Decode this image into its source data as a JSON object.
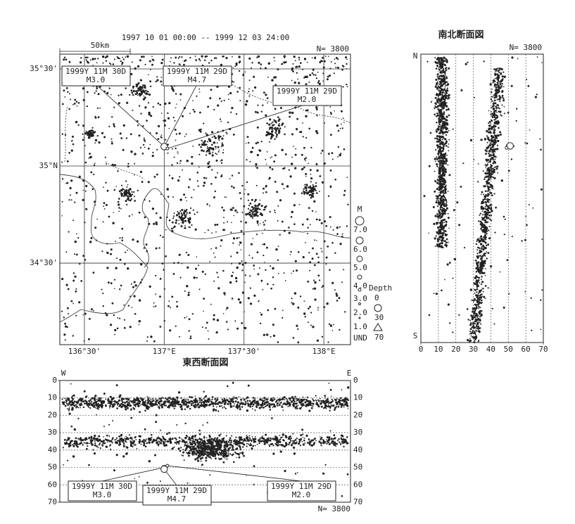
{
  "header": {
    "period": "1997 10 01 00:00 -- 1999 12 03 24:00",
    "scale_label": "50km"
  },
  "chart_data": [
    {
      "type": "map",
      "count_label": "N= 3800",
      "xlim": [
        136.346,
        138.167
      ],
      "ylim": [
        34.08,
        35.576
      ],
      "xticks": [
        {
          "value": 136.5,
          "label": "136°30'"
        },
        {
          "value": 137,
          "label": "137°E"
        },
        {
          "value": 137.5,
          "label": "137°30'"
        },
        {
          "value": 138,
          "label": "138°E"
        }
      ],
      "yticks": [
        {
          "value": 34.5,
          "label": "34°30'"
        },
        {
          "value": 35,
          "label": "35°N"
        },
        {
          "value": 35.5,
          "label": "35°30'"
        }
      ],
      "events": {
        "lon": [
          137.0,
          137.0,
          137.02
        ],
        "lat": [
          35.1,
          35.1,
          35.09
        ],
        "depth": [
          50,
          51,
          49
        ],
        "magnitude": [
          3.0,
          4.7,
          2.0
        ],
        "date_labels": [
          "1999Y 11M 30D",
          "1999Y 11M 29D",
          "1999Y 11M 29D"
        ],
        "value_labels": [
          "M3.0",
          "M4.7",
          "M2.0"
        ]
      }
    },
    {
      "type": "section",
      "direction": "ns",
      "title": "南北断面図",
      "count_label": "N= 3800",
      "top_label": "N",
      "bottom_label": "S",
      "xlim": [
        0,
        70
      ],
      "xticks": [
        0,
        10,
        20,
        30,
        40,
        50,
        60,
        70
      ]
    },
    {
      "type": "section",
      "direction": "ew",
      "title": "東西断面図",
      "count_label": "N= 3800",
      "left_label": "W",
      "right_label": "E",
      "ylim": [
        0,
        70
      ],
      "yticks": [
        0,
        10,
        20,
        30,
        40,
        50,
        60,
        70
      ]
    }
  ],
  "legend": {
    "magnitude_title": "M",
    "magnitude_labels": [
      "7.0",
      "6.0",
      "5.0",
      "4.0",
      "3.0",
      "2.0",
      "1.0",
      "UND"
    ],
    "depth_title": "Depth",
    "depth_labels": [
      "0",
      "30",
      "70"
    ]
  }
}
